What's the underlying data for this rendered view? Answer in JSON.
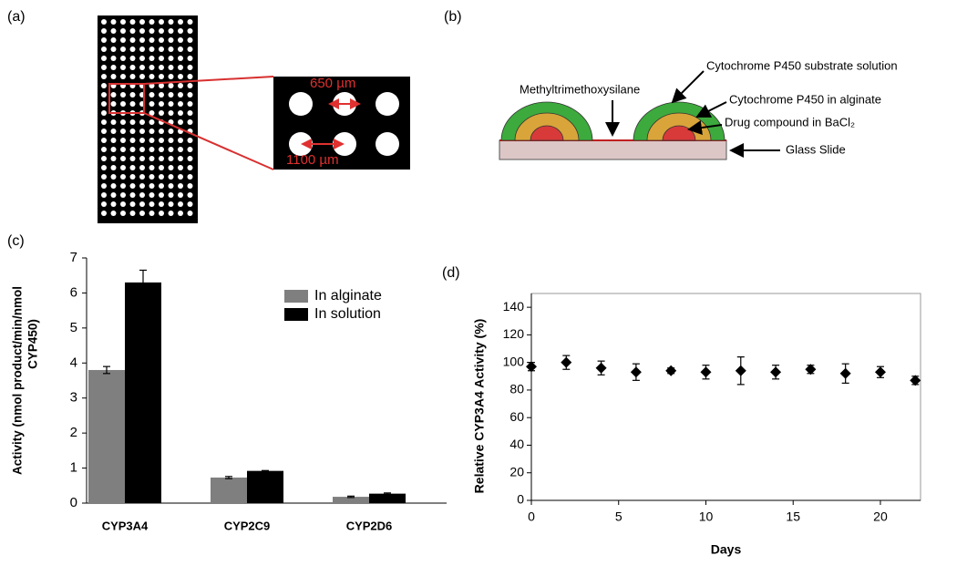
{
  "figure": {
    "panel_a": {
      "label": "(a)",
      "scale_labels": [
        "650 µm",
        "1100 µm"
      ]
    },
    "panel_b": {
      "label": "(b)",
      "labels": [
        "Methyltrimethoxysilane",
        "Cytochrome P450 substrate solution",
        "Cytochrome P450 in alginate",
        "Drug compound in BaCl₂",
        "Glass Slide"
      ]
    }
  },
  "chart_data": [
    {
      "type": "bar",
      "panel_label": "(c)",
      "ylabel": [
        "Activity (nmol product/min/nmol",
        "CYP450)"
      ],
      "categories": [
        "CYP3A4",
        "CYP2C9",
        "CYP2D6"
      ],
      "series": [
        {
          "name": "In alginate",
          "color": "#7f7f7f",
          "values": [
            3.8,
            0.73,
            0.18
          ],
          "errors": [
            0.1,
            0.03,
            0.02
          ]
        },
        {
          "name": "In solution",
          "color": "#000000",
          "values": [
            6.3,
            0.92,
            0.27
          ],
          "errors": [
            0.35,
            0.01,
            0.02
          ]
        }
      ],
      "ylim": [
        0,
        7
      ],
      "yticks": [
        0,
        1,
        2,
        3,
        4,
        5,
        6,
        7
      ],
      "legend": "upper right",
      "grid": false
    },
    {
      "type": "scatter",
      "panel_label": "(d)",
      "xlabel": "Days",
      "ylabel": "Relative CYP3A4 Activity (%)",
      "x": [
        0,
        2,
        4,
        6,
        8,
        10,
        12,
        14,
        16,
        18,
        20,
        22
      ],
      "values": [
        97,
        100,
        96,
        93,
        94,
        93,
        94,
        93,
        95,
        92,
        93,
        87
      ],
      "errors": [
        3,
        5,
        5,
        6,
        2,
        5,
        10,
        5,
        3,
        7,
        4,
        3
      ],
      "color": "#000000",
      "marker": "diamond",
      "xlim": [
        0,
        22.3
      ],
      "xticks": [
        0,
        5,
        10,
        15,
        20
      ],
      "ylim": [
        0,
        150
      ],
      "yticks": [
        0,
        20,
        40,
        60,
        80,
        100,
        120,
        140
      ],
      "grid": false
    }
  ]
}
